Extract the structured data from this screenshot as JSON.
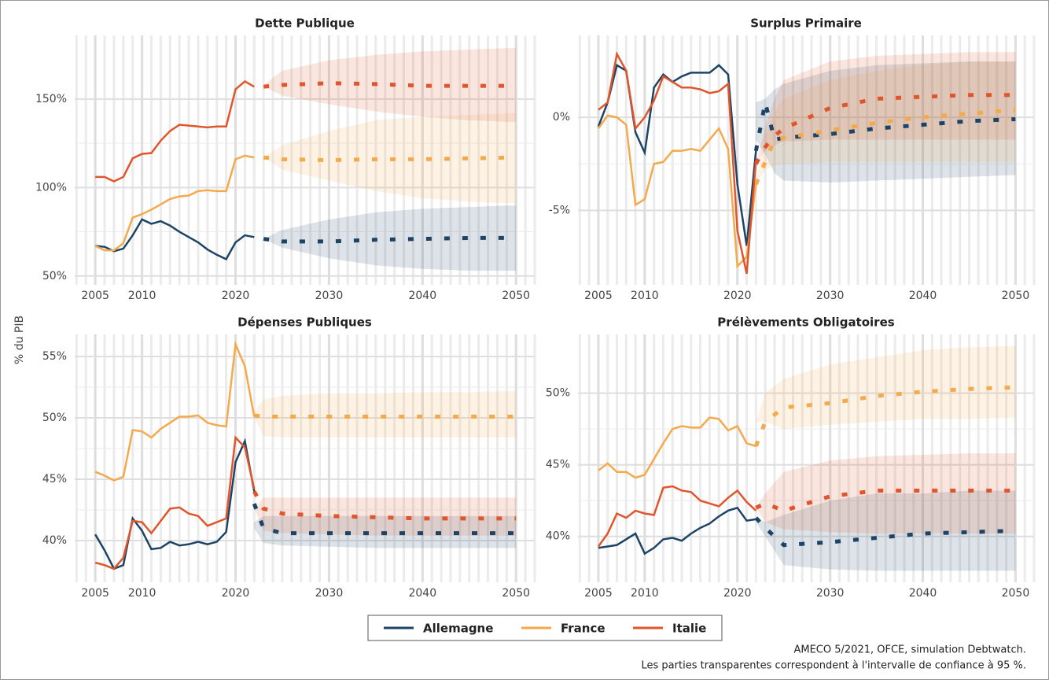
{
  "y_label": "% du PIB",
  "source": [
    "AMECO 5/2021, OFCE, simulation Debtwatch.",
    "Les parties transparentes correspondent à l'intervalle de confiance à 95 %."
  ],
  "chart_data": [
    {
      "type": "line",
      "title": "Dette Publique",
      "x": [
        2005,
        2006,
        2007,
        2008,
        2009,
        2010,
        2011,
        2012,
        2013,
        2014,
        2015,
        2016,
        2017,
        2018,
        2019,
        2020,
        2021,
        2022
      ],
      "projection_x": [
        2023,
        2025,
        2030,
        2035,
        2040,
        2045,
        2050
      ],
      "xlim": [
        2002.8,
        2052
      ],
      "xticks": [
        2005,
        2010,
        2020,
        2030,
        2040,
        2050
      ],
      "ylim": [
        45,
        186
      ],
      "yticks": [
        {
          "value": 50,
          "label": "50%"
        },
        {
          "value": 100,
          "label": "100%"
        },
        {
          "value": 150,
          "label": "150%"
        }
      ],
      "grid": true,
      "minor_grid": true,
      "series": [
        {
          "name": "Allemagne",
          "color": "#1d4466",
          "values": [
            67,
            66.5,
            64,
            65.5,
            73,
            82,
            79.5,
            81,
            78.5,
            75,
            72,
            69,
            65,
            62,
            59.5,
            69,
            73,
            72
          ],
          "projection": [
            71,
            69.5,
            69.5,
            70.5,
            71,
            71.5,
            71.5
          ],
          "lower": [
            71,
            66,
            60,
            56,
            54,
            53,
            53
          ],
          "upper": [
            71,
            76,
            82,
            86,
            88,
            89,
            90
          ]
        },
        {
          "name": "France",
          "color": "#f4a94b",
          "values": [
            67,
            64.5,
            64.5,
            68.5,
            83,
            85,
            87.5,
            90.5,
            93.5,
            95,
            95.5,
            98,
            98.5,
            98,
            98,
            116,
            118,
            117
          ],
          "projection": [
            117,
            116,
            115.5,
            116,
            116,
            116.5,
            117
          ],
          "lower": [
            117,
            110,
            104,
            98,
            94,
            92,
            91
          ],
          "upper": [
            117,
            124,
            132,
            138,
            140,
            141,
            142
          ]
        },
        {
          "name": "Italie",
          "color": "#e0552b",
          "values": [
            106,
            106,
            103.5,
            106,
            116.5,
            119,
            119.5,
            126.5,
            132,
            135.5,
            135,
            134.5,
            134,
            134.5,
            134.5,
            155.5,
            160,
            157
          ],
          "projection": [
            157,
            158,
            159,
            158.5,
            157.5,
            157.5,
            157.5
          ],
          "lower": [
            157,
            152,
            147,
            143,
            140,
            138,
            137
          ],
          "upper": [
            158,
            166,
            172,
            175,
            177,
            178,
            179
          ]
        }
      ]
    },
    {
      "type": "line",
      "title": "Surplus Primaire",
      "x": [
        2005,
        2006,
        2007,
        2008,
        2009,
        2010,
        2011,
        2012,
        2013,
        2014,
        2015,
        2016,
        2017,
        2018,
        2019,
        2020,
        2021,
        2022
      ],
      "projection_x": [
        2022,
        2023,
        2024,
        2025,
        2030,
        2035,
        2040,
        2045,
        2050
      ],
      "xlim": [
        2002.8,
        2052
      ],
      "xticks": [
        2005,
        2010,
        2020,
        2030,
        2040,
        2050
      ],
      "ylim": [
        -9,
        4.4
      ],
      "yticks": [
        {
          "value": -5,
          "label": "-5%"
        },
        {
          "value": 0,
          "label": "0%"
        }
      ],
      "grid": true,
      "minor_grid": true,
      "series": [
        {
          "name": "Allemagne",
          "color": "#1d4466",
          "values": [
            -0.5,
            0.8,
            2.8,
            2.5,
            -0.8,
            -1.9,
            1.6,
            2.3,
            1.9,
            2.2,
            2.4,
            2.4,
            2.4,
            2.8,
            2.3,
            -3.6,
            -6.9,
            -1.8
          ],
          "projection": [
            -1.8,
            0.8,
            -1.2,
            -1.1,
            -0.9,
            -0.6,
            -0.4,
            -0.2,
            -0.1
          ],
          "lower": [
            -1.2,
            -2,
            -3,
            -3.4,
            -3.5,
            -3.4,
            -3.3,
            -3.2,
            -3.1
          ],
          "upper": [
            0.8,
            1,
            1.5,
            1.8,
            2.5,
            2.8,
            2.9,
            3,
            3
          ]
        },
        {
          "name": "France",
          "color": "#f4a94b",
          "values": [
            -0.6,
            0.1,
            0,
            -0.4,
            -4.7,
            -4.4,
            -2.5,
            -2.4,
            -1.8,
            -1.8,
            -1.7,
            -1.8,
            -1.2,
            -0.6,
            -1.7,
            -8,
            -7.5,
            -3.6
          ],
          "projection": [
            -3.6,
            -2.4,
            -1.2,
            -1.1,
            -0.7,
            -0.3,
            0,
            0.2,
            0.4
          ],
          "lower": [
            -3.6,
            -2.8,
            -2.6,
            -2.5,
            -2.4,
            -2.4,
            -2.4,
            -2.4,
            -2.4
          ],
          "upper": [
            -3.6,
            -1,
            0.3,
            1,
            2,
            2.5,
            2.8,
            3,
            3
          ]
        },
        {
          "name": "Italie",
          "color": "#e0552b",
          "values": [
            0.4,
            0.8,
            3.4,
            2.5,
            -0.6,
            0,
            0.9,
            2.2,
            1.9,
            1.6,
            1.6,
            1.5,
            1.3,
            1.4,
            1.8,
            -6.1,
            -8.4,
            -2.3
          ],
          "projection": [
            -2.5,
            -1.6,
            -1,
            -0.6,
            0.5,
            1,
            1.1,
            1.2,
            1.2
          ],
          "lower": [
            -2.5,
            -1.8,
            -1.5,
            -1.3,
            -1.2,
            -1.2,
            -1.2,
            -1.2,
            -1.2
          ],
          "upper": [
            -2.5,
            -0.5,
            1,
            2,
            3,
            3.3,
            3.4,
            3.5,
            3.5
          ]
        }
      ]
    },
    {
      "type": "line",
      "title": "Dépenses Publiques",
      "x": [
        2005,
        2006,
        2007,
        2008,
        2009,
        2010,
        2011,
        2012,
        2013,
        2014,
        2015,
        2016,
        2017,
        2018,
        2019,
        2020,
        2021,
        2022
      ],
      "projection_x": [
        2022,
        2023,
        2025,
        2030,
        2035,
        2040,
        2045,
        2050
      ],
      "xlim": [
        2002.8,
        2052
      ],
      "xticks": [
        2005,
        2010,
        2020,
        2030,
        2040,
        2050
      ],
      "ylim": [
        36.6,
        56.8
      ],
      "yticks": [
        {
          "value": 40,
          "label": "40%"
        },
        {
          "value": 45,
          "label": "45%"
        },
        {
          "value": 50,
          "label": "50%"
        },
        {
          "value": 55,
          "label": "55%"
        }
      ],
      "grid": true,
      "minor_grid": true,
      "series": [
        {
          "name": "Allemagne",
          "color": "#1d4466",
          "values": [
            40.5,
            39.2,
            37.7,
            38,
            41.8,
            40.8,
            39.3,
            39.4,
            39.9,
            39.6,
            39.7,
            39.9,
            39.7,
            39.9,
            40.7,
            46.4,
            48.1,
            44
          ],
          "projection": [
            43,
            41,
            40.6,
            40.6,
            40.6,
            40.6,
            40.6,
            40.6
          ],
          "lower": [
            41,
            39.8,
            39.6,
            39.5,
            39.4,
            39.4,
            39.4,
            39.4
          ],
          "upper": [
            41.5,
            42,
            42,
            42,
            42,
            42,
            42,
            42
          ]
        },
        {
          "name": "France",
          "color": "#f4a94b",
          "values": [
            45.6,
            45.3,
            44.9,
            45.2,
            49,
            48.9,
            48.4,
            49.1,
            49.6,
            50.1,
            50.1,
            50.2,
            49.6,
            49.4,
            49.3,
            56,
            54.2,
            50.1
          ],
          "projection": [
            50.2,
            50.1,
            50.1,
            50.1,
            50.1,
            50.1,
            50.1,
            50.1
          ],
          "lower": [
            50,
            48.5,
            48.4,
            48.4,
            48.4,
            48.4,
            48.4,
            48.4
          ],
          "upper": [
            50.5,
            51.5,
            51.8,
            52,
            52,
            52.1,
            52.1,
            52.2
          ]
        },
        {
          "name": "Italie",
          "color": "#e0552b",
          "values": [
            38.2,
            38,
            37.7,
            38.6,
            41.6,
            41.5,
            40.6,
            41.6,
            42.6,
            42.7,
            42.2,
            42,
            41.2,
            41.5,
            41.8,
            48.4,
            47.6,
            44.2
          ],
          "projection": [
            44,
            42.6,
            42.2,
            42,
            41.9,
            41.8,
            41.8,
            41.8
          ],
          "lower": [
            42.6,
            40.8,
            40.6,
            40.5,
            40.4,
            40.4,
            40.4,
            40.4
          ],
          "upper": [
            42.6,
            43.5,
            43.5,
            43.5,
            43.5,
            43.5,
            43.5,
            43.5
          ]
        }
      ]
    },
    {
      "type": "line",
      "title": "Prélèvements Obligatoires",
      "x": [
        2005,
        2006,
        2007,
        2008,
        2009,
        2010,
        2011,
        2012,
        2013,
        2014,
        2015,
        2016,
        2017,
        2018,
        2019,
        2020,
        2021,
        2022
      ],
      "projection_x": [
        2022,
        2023,
        2025,
        2030,
        2035,
        2040,
        2045,
        2050
      ],
      "xlim": [
        2002.8,
        2052
      ],
      "xticks": [
        2005,
        2010,
        2020,
        2030,
        2040,
        2050
      ],
      "ylim": [
        36.8,
        54.1
      ],
      "yticks": [
        {
          "value": 40,
          "label": "40%"
        },
        {
          "value": 45,
          "label": "45%"
        },
        {
          "value": 50,
          "label": "50%"
        }
      ],
      "grid": true,
      "minor_grid": true,
      "series": [
        {
          "name": "Allemagne",
          "color": "#1d4466",
          "values": [
            39.2,
            39.3,
            39.4,
            39.8,
            40.2,
            38.8,
            39.2,
            39.8,
            39.9,
            39.7,
            40.2,
            40.6,
            40.9,
            41.4,
            41.8,
            42,
            41.1,
            41.2
          ],
          "projection": [
            41.3,
            40.6,
            39.4,
            39.6,
            39.9,
            40.2,
            40.3,
            40.4
          ],
          "lower": [
            41,
            40,
            38,
            37.7,
            37.6,
            37.6,
            37.6,
            37.6
          ],
          "upper": [
            41.3,
            41,
            41.5,
            42.5,
            43,
            43,
            43.2,
            43.2
          ]
        },
        {
          "name": "France",
          "color": "#f4a94b",
          "values": [
            44.6,
            45.1,
            44.5,
            44.5,
            44.1,
            44.3,
            45.4,
            46.5,
            47.5,
            47.7,
            47.6,
            47.6,
            48.3,
            48.2,
            47.4,
            47.7,
            46.5,
            46.3
          ],
          "projection": [
            46.3,
            48,
            49,
            49.3,
            49.8,
            50.1,
            50.3,
            50.4
          ],
          "lower": [
            48,
            48,
            47.5,
            47.8,
            48,
            48.2,
            48.2,
            48.3
          ],
          "upper": [
            48,
            50,
            51,
            52,
            52.5,
            53,
            53.2,
            53.3
          ]
        },
        {
          "name": "Italie",
          "color": "#e0552b",
          "values": [
            39.3,
            40.2,
            41.6,
            41.3,
            41.8,
            41.6,
            41.5,
            43.4,
            43.5,
            43.2,
            43.1,
            42.5,
            42.3,
            42.1,
            42.7,
            43.2,
            42.4,
            41.8
          ],
          "projection": [
            42,
            42.3,
            41.8,
            42.8,
            43.2,
            43.2,
            43.2,
            43.2
          ],
          "lower": [
            42,
            41,
            40.5,
            40.3,
            40.2,
            40.2,
            40.2,
            40.2
          ],
          "upper": [
            42,
            43,
            44.5,
            45.3,
            45.6,
            45.7,
            45.8,
            45.8
          ]
        }
      ]
    }
  ]
}
